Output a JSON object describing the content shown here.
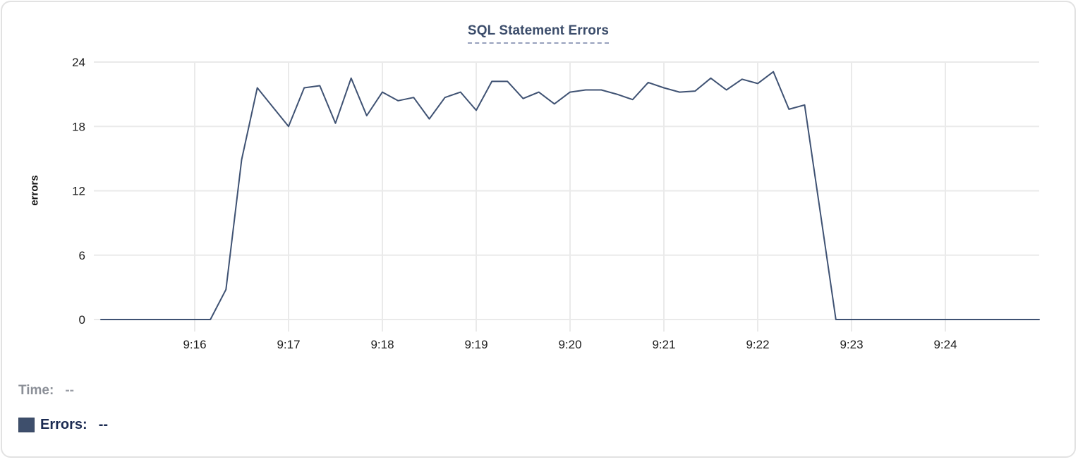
{
  "chart_data": {
    "type": "line",
    "title": "SQL Statement Errors",
    "xlabel": "",
    "ylabel": "errors",
    "ylim": [
      0,
      24
    ],
    "y_ticks": [
      0,
      6,
      12,
      18,
      24
    ],
    "x_tick_labels": [
      "9:16",
      "9:17",
      "9:18",
      "9:19",
      "9:20",
      "9:21",
      "9:22",
      "9:23",
      "9:24"
    ],
    "x_start": "9:15:00",
    "x_end": "9:25:00",
    "sample_interval_seconds": 10,
    "grid": true,
    "legend_position": "bottom-left",
    "series": [
      {
        "name": "Errors",
        "color": "#3f5273",
        "values": [
          0,
          0,
          0,
          0,
          0,
          0,
          0,
          0,
          2.8,
          14.9,
          21.6,
          19.8,
          18,
          21.6,
          21.8,
          18.3,
          22.5,
          19,
          21.2,
          20.4,
          20.7,
          18.7,
          20.7,
          21.2,
          19.5,
          22.2,
          22.2,
          20.6,
          21.2,
          20.1,
          21.2,
          21.4,
          21.4,
          21,
          20.5,
          22.1,
          21.6,
          21.2,
          21.3,
          22.5,
          21.4,
          22.4,
          22,
          23.1,
          19.6,
          20,
          10,
          0,
          0,
          0,
          0,
          0,
          0,
          0,
          0,
          0,
          0,
          0,
          0,
          0,
          0
        ]
      }
    ]
  },
  "tooltip": {
    "time_label": "Time:",
    "time_value": "--",
    "errors_label": "Errors:",
    "errors_value": "--"
  },
  "colors": {
    "line": "#3f5273",
    "swatch": "#3e4f6c",
    "grid": "#eaeaea",
    "title": "#3c4d6b",
    "title_underline": "#97a1bd",
    "tick_text": "#1c1c1c",
    "time_label": "#8b8f97",
    "errors_label": "#1b2b52",
    "card_border": "#e2e2e2",
    "background": "#ffffff"
  }
}
